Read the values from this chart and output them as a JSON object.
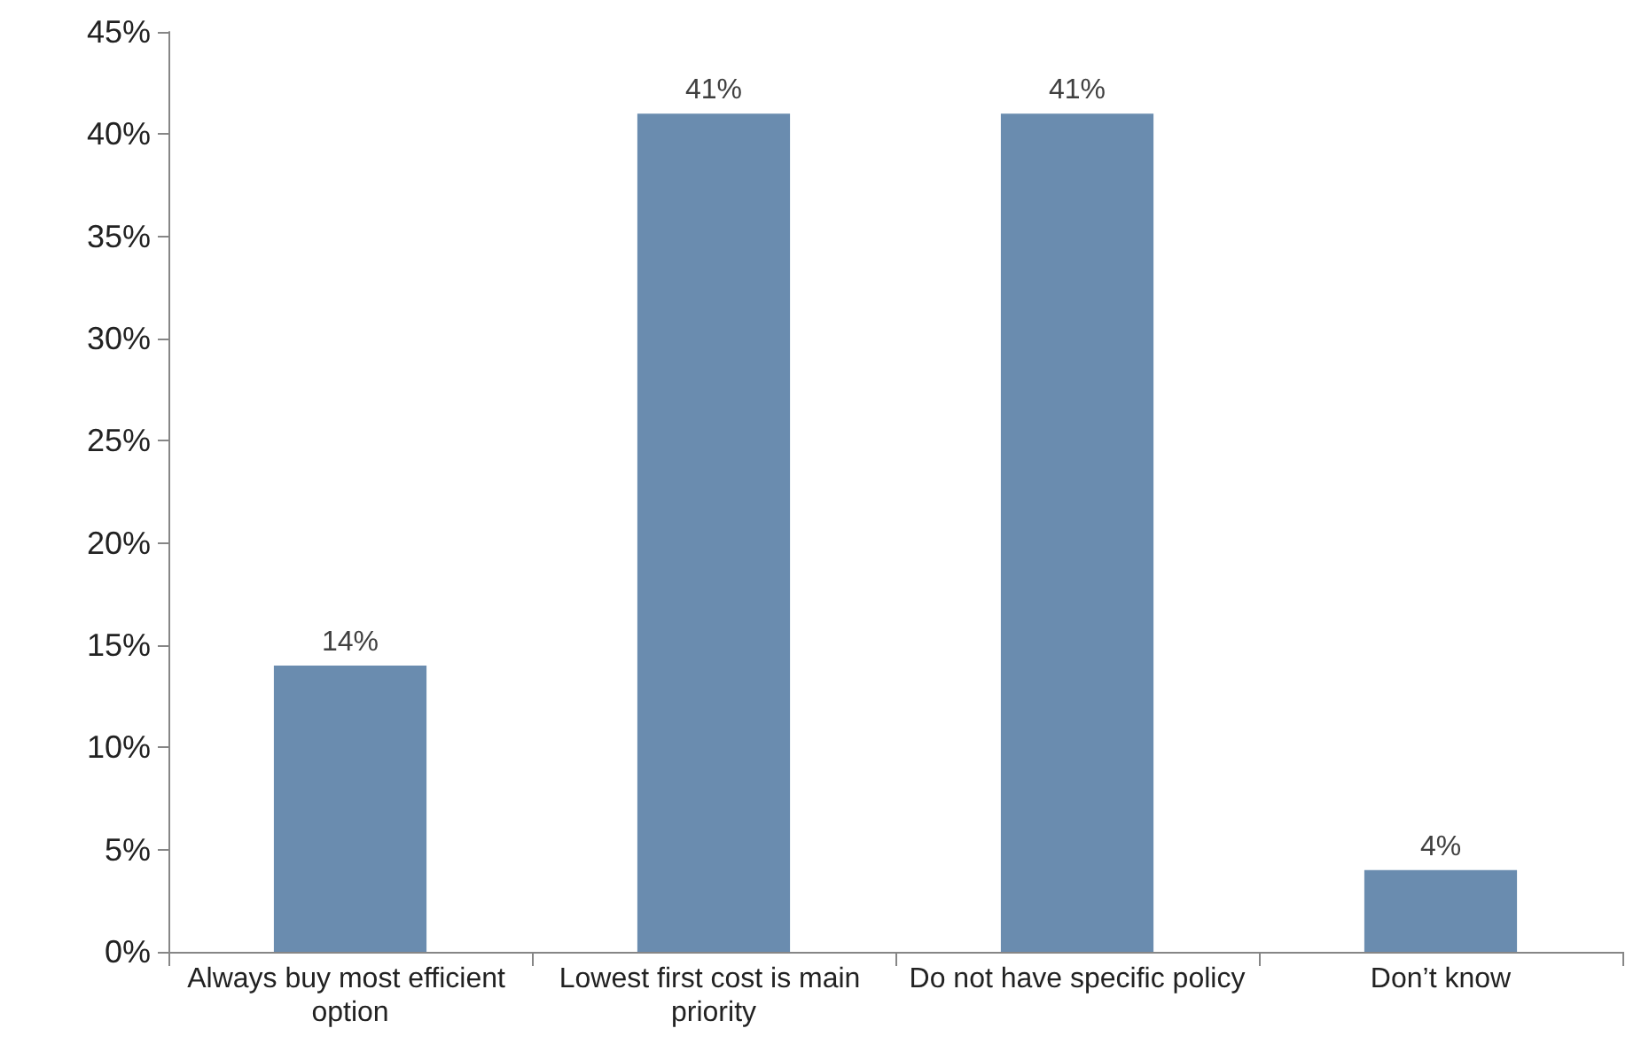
{
  "chart_data": {
    "type": "bar",
    "categories": [
      "Always buy most efficient option",
      "Lowest first cost is main priority",
      "Do not have specific policy",
      "Don’t know"
    ],
    "values": [
      14,
      41,
      41,
      4
    ],
    "value_labels": [
      "14%",
      "41%",
      "41%",
      "4%"
    ],
    "color": "#6a8caf",
    "ylim": [
      0,
      45
    ],
    "yticks": [
      {
        "value": 0,
        "label": "0%"
      },
      {
        "value": 5,
        "label": "5%"
      },
      {
        "value": 10,
        "label": "10%"
      },
      {
        "value": 15,
        "label": "15%"
      },
      {
        "value": 20,
        "label": "20%"
      },
      {
        "value": 25,
        "label": "25%"
      },
      {
        "value": 30,
        "label": "30%"
      },
      {
        "value": 35,
        "label": "35%"
      },
      {
        "value": 40,
        "label": "40%"
      },
      {
        "value": 45,
        "label": "45%"
      }
    ],
    "grid": false
  }
}
